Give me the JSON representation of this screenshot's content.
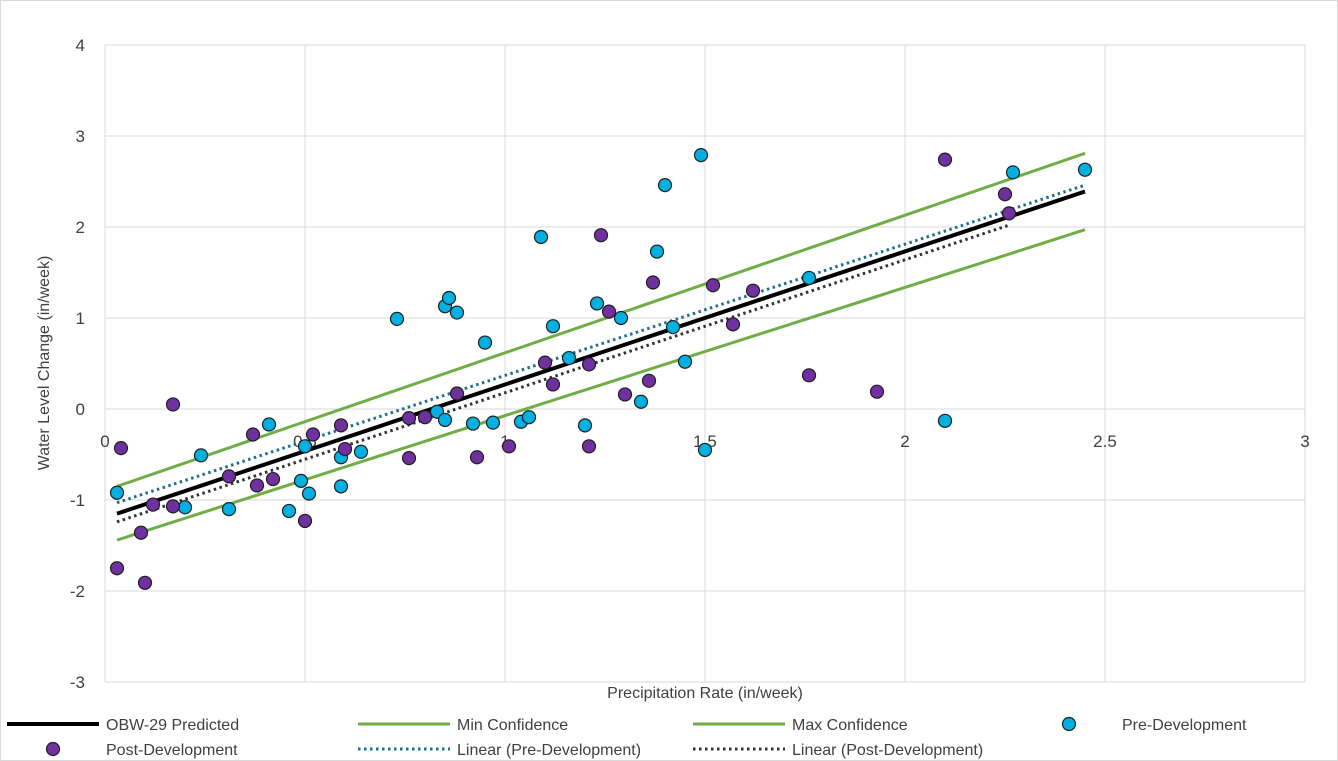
{
  "chart_data": {
    "type": "scatter",
    "title": "",
    "xlabel": "Precipitation Rate (in/week)",
    "ylabel": "Water Level Change (in/week)",
    "xlim": [
      0,
      3
    ],
    "ylim": [
      -3,
      4
    ],
    "x_ticks": [
      "0",
      "0.5",
      "1",
      "1.5",
      "2",
      "2.5",
      "3"
    ],
    "y_ticks": [
      "-3",
      "-2",
      "-1",
      "0",
      "1",
      "2",
      "3",
      "4"
    ],
    "grid": true,
    "legend_position": "bottom",
    "lines": [
      {
        "name": "OBW-29 Predicted",
        "style": "solid",
        "color": "#000000",
        "x": [
          0.03,
          2.45
        ],
        "y": [
          -1.15,
          2.39
        ]
      },
      {
        "name": "Min Confidence",
        "style": "solid",
        "color": "#70ad47",
        "x": [
          0.03,
          2.45
        ],
        "y": [
          -1.44,
          1.97
        ]
      },
      {
        "name": "Max Confidence",
        "style": "solid",
        "color": "#70ad47",
        "x": [
          0.03,
          2.45
        ],
        "y": [
          -0.85,
          2.81
        ]
      },
      {
        "name": "Linear (Pre-Development)",
        "style": "dotted",
        "color": "#1f6e8c",
        "x": [
          0.03,
          2.45
        ],
        "y": [
          -1.03,
          2.46
        ]
      },
      {
        "name": "Linear (Post-Development)",
        "style": "dotted",
        "color": "#333333",
        "x": [
          0.03,
          2.26
        ],
        "y": [
          -1.24,
          2.02
        ]
      }
    ],
    "series": [
      {
        "name": "Pre-Development",
        "marker": "circle",
        "color": "#00b0e0",
        "points": [
          [
            0.03,
            -0.92
          ],
          [
            0.2,
            -1.08
          ],
          [
            0.24,
            -0.51
          ],
          [
            0.31,
            -1.1
          ],
          [
            0.41,
            -0.17
          ],
          [
            0.46,
            -1.12
          ],
          [
            0.49,
            -0.79
          ],
          [
            0.5,
            -0.41
          ],
          [
            0.51,
            -0.93
          ],
          [
            0.59,
            -0.53
          ],
          [
            0.59,
            -0.85
          ],
          [
            0.64,
            -0.47
          ],
          [
            0.73,
            0.99
          ],
          [
            0.83,
            -0.03
          ],
          [
            0.85,
            -0.12
          ],
          [
            0.85,
            1.13
          ],
          [
            0.86,
            1.22
          ],
          [
            0.88,
            1.06
          ],
          [
            0.92,
            -0.16
          ],
          [
            0.95,
            0.73
          ],
          [
            0.97,
            -0.15
          ],
          [
            1.04,
            -0.14
          ],
          [
            1.06,
            -0.09
          ],
          [
            1.09,
            1.89
          ],
          [
            1.12,
            0.91
          ],
          [
            1.16,
            0.56
          ],
          [
            1.2,
            -0.18
          ],
          [
            1.23,
            1.16
          ],
          [
            1.29,
            1.0
          ],
          [
            1.34,
            0.08
          ],
          [
            1.38,
            1.73
          ],
          [
            1.4,
            2.46
          ],
          [
            1.42,
            0.9
          ],
          [
            1.45,
            0.52
          ],
          [
            1.49,
            2.79
          ],
          [
            1.5,
            -0.45
          ],
          [
            1.76,
            1.44
          ],
          [
            2.1,
            -0.13
          ],
          [
            2.27,
            2.6
          ],
          [
            2.45,
            2.63
          ]
        ]
      },
      {
        "name": "Post-Development",
        "marker": "circle",
        "color": "#7030a0",
        "points": [
          [
            0.03,
            -1.75
          ],
          [
            0.04,
            -0.43
          ],
          [
            0.09,
            -1.36
          ],
          [
            0.1,
            -1.91
          ],
          [
            0.12,
            -1.05
          ],
          [
            0.17,
            0.05
          ],
          [
            0.17,
            -1.07
          ],
          [
            0.31,
            -0.74
          ],
          [
            0.37,
            -0.28
          ],
          [
            0.38,
            -0.84
          ],
          [
            0.42,
            -0.77
          ],
          [
            0.5,
            -1.23
          ],
          [
            0.52,
            -0.28
          ],
          [
            0.59,
            -0.18
          ],
          [
            0.6,
            -0.44
          ],
          [
            0.76,
            -0.1
          ],
          [
            0.76,
            -0.54
          ],
          [
            0.8,
            -0.09
          ],
          [
            0.88,
            0.17
          ],
          [
            0.93,
            -0.53
          ],
          [
            1.01,
            -0.41
          ],
          [
            1.1,
            0.51
          ],
          [
            1.12,
            0.27
          ],
          [
            1.21,
            0.49
          ],
          [
            1.21,
            -0.41
          ],
          [
            1.24,
            1.91
          ],
          [
            1.26,
            1.07
          ],
          [
            1.3,
            0.16
          ],
          [
            1.36,
            0.31
          ],
          [
            1.37,
            1.39
          ],
          [
            1.52,
            1.36
          ],
          [
            1.57,
            0.93
          ],
          [
            1.62,
            1.3
          ],
          [
            1.76,
            0.37
          ],
          [
            1.93,
            0.19
          ],
          [
            2.1,
            2.74
          ],
          [
            2.25,
            2.36
          ],
          [
            2.26,
            2.15
          ]
        ]
      }
    ],
    "legend": [
      {
        "label": "OBW-29 Predicted",
        "type": "line",
        "style": "solid",
        "color": "#000000"
      },
      {
        "label": "Min Confidence",
        "type": "line",
        "style": "solid",
        "color": "#70ad47"
      },
      {
        "label": "Max Confidence",
        "type": "line",
        "style": "solid",
        "color": "#70ad47"
      },
      {
        "label": "Pre-Development",
        "type": "marker",
        "color": "#00b0e0"
      },
      {
        "label": "Post-Development",
        "type": "marker",
        "color": "#7030a0"
      },
      {
        "label": "Linear (Pre-Development)",
        "type": "line",
        "style": "dotted",
        "color": "#1f6e8c"
      },
      {
        "label": "Linear (Post-Development)",
        "type": "line",
        "style": "dotted",
        "color": "#333333"
      }
    ]
  }
}
